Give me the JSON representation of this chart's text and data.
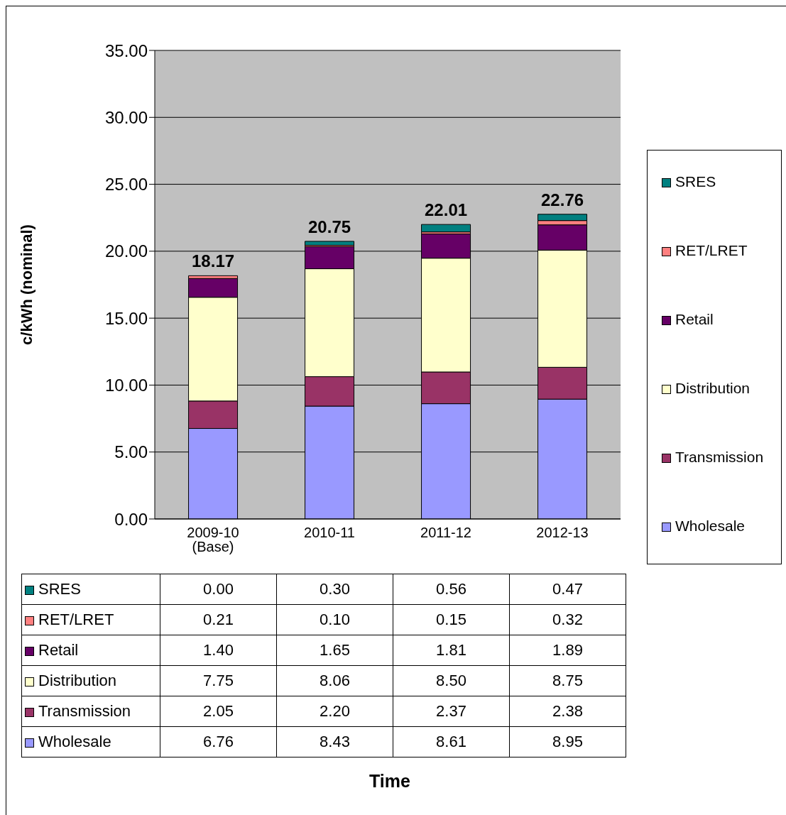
{
  "chart_data": {
    "type": "bar",
    "stacked": true,
    "annotations": [
      "Time"
    ],
    "ylabel": "c/kWh (nominal)",
    "categories": [
      "2009-10 (Base)",
      "2010-11",
      "2011-12",
      "2012-13"
    ],
    "series": [
      {
        "name": "Wholesale",
        "color": "#9999ff",
        "values": [
          6.76,
          8.43,
          8.61,
          8.95
        ],
        "value_labels": [
          "6.76",
          "8.43",
          "8.61",
          "8.95"
        ]
      },
      {
        "name": "Transmission",
        "color": "#993366",
        "values": [
          2.05,
          2.2,
          2.37,
          2.38
        ],
        "value_labels": [
          "2.05",
          "2.20",
          "2.37",
          "2.38"
        ]
      },
      {
        "name": "Distribution",
        "color": "#ffffcc",
        "values": [
          7.75,
          8.06,
          8.5,
          8.75
        ],
        "value_labels": [
          "7.75",
          "8.06",
          "8.50",
          "8.75"
        ]
      },
      {
        "name": "Retail",
        "color": "#660066",
        "values": [
          1.4,
          1.65,
          1.81,
          1.89
        ],
        "value_labels": [
          "1.40",
          "1.65",
          "1.81",
          "1.89"
        ]
      },
      {
        "name": "RET/LRET",
        "color": "#ff8080",
        "values": [
          0.21,
          0.1,
          0.15,
          0.32
        ],
        "value_labels": [
          "0.21",
          "0.10",
          "0.15",
          "0.32"
        ]
      },
      {
        "name": "SRES",
        "color": "#008080",
        "values": [
          0.0,
          0.3,
          0.56,
          0.47
        ],
        "value_labels": [
          "0.00",
          "0.30",
          "0.56",
          "0.47"
        ]
      }
    ],
    "totals": [
      "18.17",
      "20.75",
      "22.01",
      "22.76"
    ],
    "ylim": [
      0,
      35
    ],
    "yticks": [
      {
        "value": 0,
        "label": "0.00"
      },
      {
        "value": 5,
        "label": "5.00"
      },
      {
        "value": 10,
        "label": "10.00"
      },
      {
        "value": 15,
        "label": "15.00"
      },
      {
        "value": 20,
        "label": "20.00"
      },
      {
        "value": 25,
        "label": "25.00"
      },
      {
        "value": 30,
        "label": "30.00"
      },
      {
        "value": 35,
        "label": "35.00"
      }
    ],
    "grid": "y",
    "legend": "right"
  }
}
